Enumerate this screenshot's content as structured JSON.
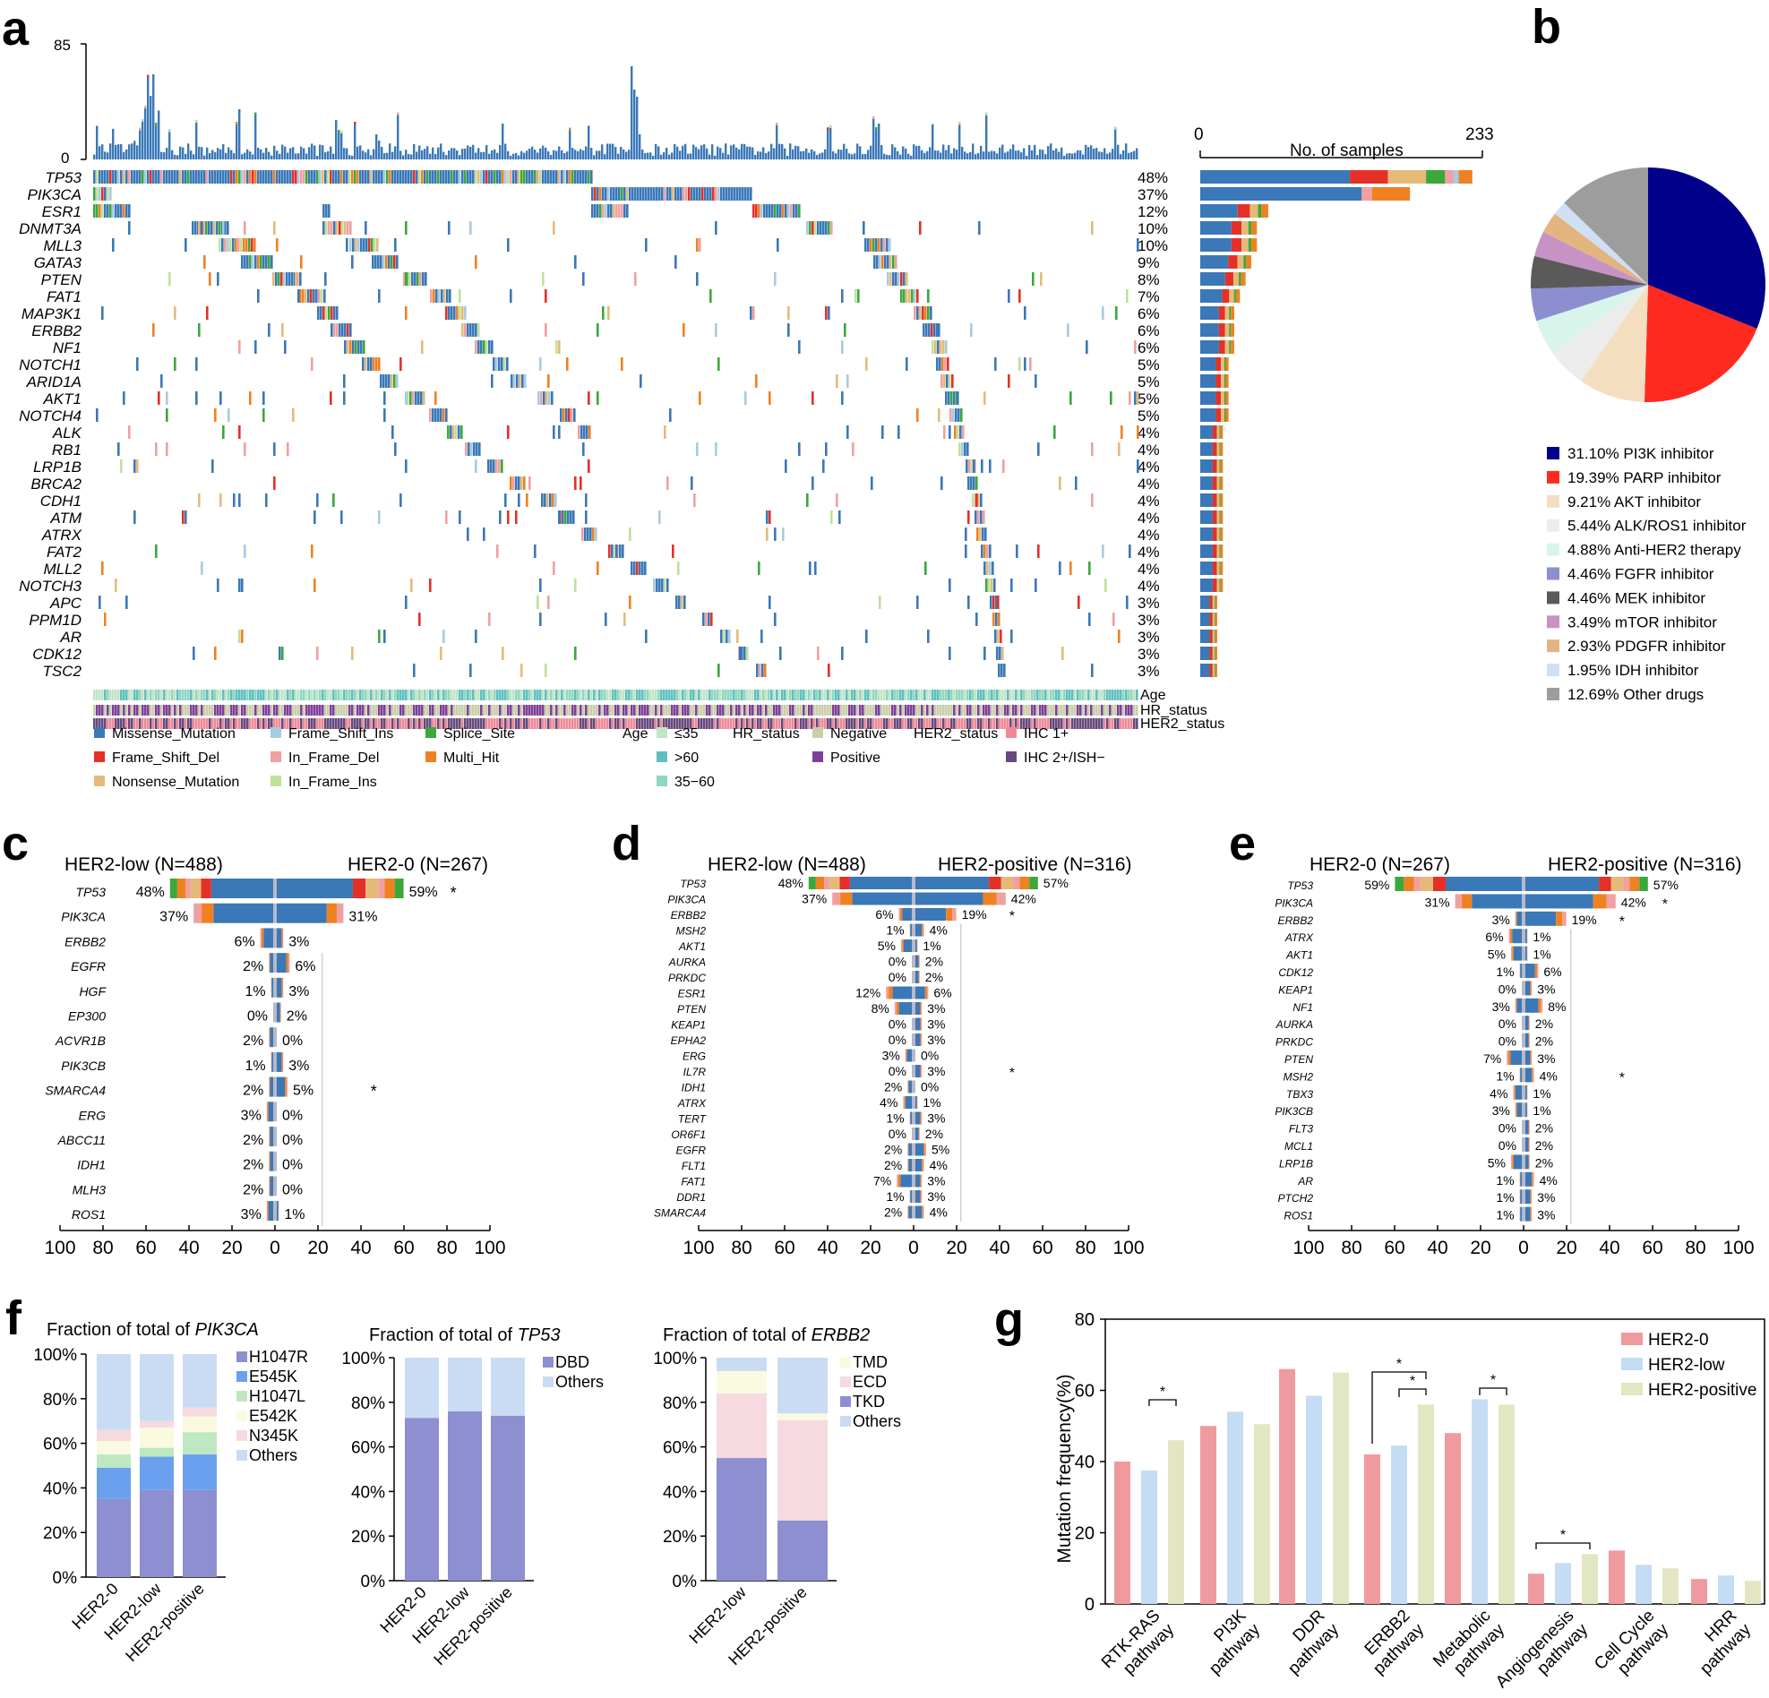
{
  "colors": {
    "missense": "#3a78b8",
    "frameshift_del": "#e53028",
    "nonsense": "#e5ba78",
    "frameshift_ins": "#a7cbe2",
    "inframe_del": "#f0a0a0",
    "inframe_ins": "#bde29a",
    "splice": "#3ba83a",
    "multi_hit": "#ef8121",
    "age_le35": "#c2e4c7",
    "age_gt60": "#5fbfbf",
    "age_35_60": "#8fd7be",
    "hr_negative": "#c9cea8",
    "hr_positive": "#7e3f98",
    "her2_ihc1": "#ee8a96",
    "her2_ihc2": "#66497d",
    "her2_0": "#ef9a9e",
    "her2_low": "#c4dcf4",
    "her2_positive": "#e3e6c2",
    "bar_blue": "#8d8fd0",
    "bar_lightblue": "#c9dcf4"
  },
  "panel_labels": {
    "a": "a",
    "b": "b",
    "c": "c",
    "d": "d",
    "e": "e",
    "f": "f",
    "g": "g"
  },
  "oncoplot": {
    "top_axis": {
      "max": "85",
      "min": "0"
    },
    "genes": [
      "TP53",
      "PIK3CA",
      "ESR1",
      "DNMT3A",
      "MLL3",
      "GATA3",
      "PTEN",
      "FAT1",
      "MAP3K1",
      "ERBB2",
      "NF1",
      "NOTCH1",
      "ARID1A",
      "AKT1",
      "NOTCH4",
      "ALK",
      "RB1",
      "LRP1B",
      "BRCA2",
      "CDH1",
      "ATM",
      "ATRX",
      "FAT2",
      "MLL2",
      "NOTCH3",
      "APC",
      "PPM1D",
      "AR",
      "CDK12",
      "TSC2"
    ],
    "percent_labels": [
      "48%",
      "37%",
      "12%",
      "10%",
      "10%",
      "9%",
      "8%",
      "7%",
      "6%",
      "6%",
      "6%",
      "5%",
      "5%",
      "5%",
      "5%",
      "4%",
      "4%",
      "4%",
      "4%",
      "4%",
      "4%",
      "4%",
      "4%",
      "4%",
      "4%",
      "3%",
      "3%",
      "3%",
      "3%",
      "3%"
    ],
    "percents": [
      48,
      37,
      12,
      10,
      10,
      9,
      8,
      7,
      6,
      6,
      6,
      5,
      5,
      5,
      5,
      4,
      4,
      4,
      4,
      4,
      4,
      4,
      4,
      4,
      4,
      3,
      3,
      3,
      3,
      3
    ],
    "samples_axis": {
      "title": "No. of samples",
      "min": "0",
      "max": "233"
    },
    "track_labels": [
      "Age",
      "HR_status",
      "HER2_status"
    ],
    "legend": {
      "mutation": [
        "Missense_Mutation",
        "Frame_Shift_Del",
        "Nonsense_Mutation",
        "Frame_Shift_Ins",
        "In_Frame_Del",
        "In_Frame_Ins",
        "Splice_Site",
        "Multi_Hit"
      ],
      "age_title": "Age",
      "age": [
        "≤35",
        ">60",
        "35−60"
      ],
      "hr_title": "HR_status",
      "hr": [
        "Negative",
        "Positive"
      ],
      "her2_title": "HER2_status",
      "her2": [
        "IHC 1+",
        "IHC 2+/ISH−"
      ]
    }
  },
  "pie": {
    "slices": [
      {
        "label": "31.10% PI3K inhibitor",
        "value": 31.1,
        "color": "#00008b"
      },
      {
        "label": "19.39% PARP inhibitor",
        "value": 19.39,
        "color": "#ff2a1f"
      },
      {
        "label": "9.21% AKT  inhibitor",
        "value": 9.21,
        "color": "#f3dfc0"
      },
      {
        "label": "5.44% ALK/ROS1 inhibitor",
        "value": 5.44,
        "color": "#ececec"
      },
      {
        "label": "4.88% Anti-HER2 therapy",
        "value": 4.88,
        "color": "#d8f5ec"
      },
      {
        "label": "4.46% FGFR inhibitor",
        "value": 4.46,
        "color": "#8c8ed0"
      },
      {
        "label": "4.46% MEK inhibitor",
        "value": 4.46,
        "color": "#5a5a5a"
      },
      {
        "label": "3.49% mTOR inhibitor",
        "value": 3.49,
        "color": "#c793c4"
      },
      {
        "label": "2.93% PDGFR inhibitor",
        "value": 2.93,
        "color": "#e3b47f"
      },
      {
        "label": "1.95% IDH inhibitor",
        "value": 1.95,
        "color": "#cfe0f5"
      },
      {
        "label": "12.69% Other drugs",
        "value": 12.69,
        "color": "#9d9d9d"
      }
    ]
  },
  "comparisons": {
    "c": {
      "left_title": "HER2-low (N=488)",
      "right_title": "HER2-0 (N=267)",
      "rows": [
        {
          "gene": "TP53",
          "l": 48,
          "r": 59,
          "ll": "48%",
          "rl": "59%",
          "sig": "*"
        },
        {
          "gene": "PIK3CA",
          "l": 37,
          "r": 31,
          "ll": "37%",
          "rl": "31%",
          "sig": ""
        },
        {
          "gene": "ERBB2",
          "l": 6,
          "r": 3,
          "ll": "6%",
          "rl": "3%",
          "sig": ""
        },
        {
          "gene": "EGFR",
          "l": 2,
          "r": 6,
          "ll": "2%",
          "rl": "6%",
          "sig": ""
        },
        {
          "gene": "HGF",
          "l": 1,
          "r": 3,
          "ll": "1%",
          "rl": "3%",
          "sig": ""
        },
        {
          "gene": "EP300",
          "l": 0,
          "r": 2,
          "ll": "0%",
          "rl": "2%",
          "sig": ""
        },
        {
          "gene": "ACVR1B",
          "l": 2,
          "r": 0,
          "ll": "2%",
          "rl": "0%",
          "sig": ""
        },
        {
          "gene": "PIK3CB",
          "l": 1,
          "r": 3,
          "ll": "1%",
          "rl": "3%",
          "sig": ""
        },
        {
          "gene": "SMARCA4",
          "l": 2,
          "r": 5,
          "ll": "2%",
          "rl": "5%",
          "sig": "*"
        },
        {
          "gene": "ERG",
          "l": 3,
          "r": 0,
          "ll": "3%",
          "rl": "0%",
          "sig": ""
        },
        {
          "gene": "ABCC11",
          "l": 2,
          "r": 0,
          "ll": "2%",
          "rl": "0%",
          "sig": ""
        },
        {
          "gene": "IDH1",
          "l": 2,
          "r": 0,
          "ll": "2%",
          "rl": "0%",
          "sig": ""
        },
        {
          "gene": "MLH3",
          "l": 2,
          "r": 0,
          "ll": "2%",
          "rl": "0%",
          "sig": ""
        },
        {
          "gene": "ROS1",
          "l": 3,
          "r": 1,
          "ll": "3%",
          "rl": "1%",
          "sig": ""
        }
      ],
      "axis_ticks": [
        "100",
        "80",
        "60",
        "40",
        "20",
        "0",
        "20",
        "40",
        "60",
        "80",
        "100"
      ]
    },
    "d": {
      "left_title": "HER2-low (N=488)",
      "right_title": "HER2-positive (N=316)",
      "rows": [
        {
          "gene": "TP53",
          "l": 48,
          "r": 57,
          "ll": "48%",
          "rl": "57%",
          "sig": ""
        },
        {
          "gene": "PIK3CA",
          "l": 37,
          "r": 42,
          "ll": "37%",
          "rl": "42%",
          "sig": ""
        },
        {
          "gene": "ERBB2",
          "l": 6,
          "r": 19,
          "ll": "6%",
          "rl": "19%",
          "sig": "*"
        },
        {
          "gene": "MSH2",
          "l": 1,
          "r": 4,
          "ll": "1%",
          "rl": "4%",
          "sig": ""
        },
        {
          "gene": "AKT1",
          "l": 5,
          "r": 1,
          "ll": "5%",
          "rl": "1%",
          "sig": ""
        },
        {
          "gene": "AURKA",
          "l": 0,
          "r": 2,
          "ll": "0%",
          "rl": "2%",
          "sig": ""
        },
        {
          "gene": "PRKDC",
          "l": 0,
          "r": 2,
          "ll": "0%",
          "rl": "2%",
          "sig": ""
        },
        {
          "gene": "ESR1",
          "l": 12,
          "r": 6,
          "ll": "12%",
          "rl": "6%",
          "sig": ""
        },
        {
          "gene": "PTEN",
          "l": 8,
          "r": 3,
          "ll": "8%",
          "rl": "3%",
          "sig": ""
        },
        {
          "gene": "KEAP1",
          "l": 0,
          "r": 3,
          "ll": "0%",
          "rl": "3%",
          "sig": ""
        },
        {
          "gene": "EPHA2",
          "l": 0,
          "r": 3,
          "ll": "0%",
          "rl": "3%",
          "sig": ""
        },
        {
          "gene": "ERG",
          "l": 3,
          "r": 0,
          "ll": "3%",
          "rl": "0%",
          "sig": ""
        },
        {
          "gene": "IL7R",
          "l": 0,
          "r": 3,
          "ll": "0%",
          "rl": "3%",
          "sig": "*"
        },
        {
          "gene": "IDH1",
          "l": 2,
          "r": 0,
          "ll": "2%",
          "rl": "0%",
          "sig": ""
        },
        {
          "gene": "ATRX",
          "l": 4,
          "r": 1,
          "ll": "4%",
          "rl": "1%",
          "sig": ""
        },
        {
          "gene": "TERT",
          "l": 1,
          "r": 3,
          "ll": "1%",
          "rl": "3%",
          "sig": ""
        },
        {
          "gene": "OR6F1",
          "l": 0,
          "r": 2,
          "ll": "0%",
          "rl": "2%",
          "sig": ""
        },
        {
          "gene": "EGFR",
          "l": 2,
          "r": 5,
          "ll": "2%",
          "rl": "5%",
          "sig": ""
        },
        {
          "gene": "FLT1",
          "l": 2,
          "r": 4,
          "ll": "2%",
          "rl": "4%",
          "sig": ""
        },
        {
          "gene": "FAT1",
          "l": 7,
          "r": 3,
          "ll": "7%",
          "rl": "3%",
          "sig": ""
        },
        {
          "gene": "DDR1",
          "l": 1,
          "r": 3,
          "ll": "1%",
          "rl": "3%",
          "sig": ""
        },
        {
          "gene": "SMARCA4",
          "l": 2,
          "r": 4,
          "ll": "2%",
          "rl": "4%",
          "sig": ""
        }
      ],
      "axis_ticks": [
        "100",
        "80",
        "60",
        "40",
        "20",
        "0",
        "20",
        "40",
        "60",
        "80",
        "100"
      ]
    },
    "e": {
      "left_title": "HER2-0 (N=267)",
      "right_title": "HER2-positive (N=316)",
      "rows": [
        {
          "gene": "TP53",
          "l": 59,
          "r": 57,
          "ll": "59%",
          "rl": "57%",
          "sig": ""
        },
        {
          "gene": "PIK3CA",
          "l": 31,
          "r": 42,
          "ll": "31%",
          "rl": "42%",
          "sig": "*"
        },
        {
          "gene": "ERBB2",
          "l": 3,
          "r": 19,
          "ll": "3%",
          "rl": "19%",
          "sig": "*"
        },
        {
          "gene": "ATRX",
          "l": 6,
          "r": 1,
          "ll": "6%",
          "rl": "1%",
          "sig": ""
        },
        {
          "gene": "AKT1",
          "l": 5,
          "r": 1,
          "ll": "5%",
          "rl": "1%",
          "sig": ""
        },
        {
          "gene": "CDK12",
          "l": 1,
          "r": 6,
          "ll": "1%",
          "rl": "6%",
          "sig": ""
        },
        {
          "gene": "KEAP1",
          "l": 0,
          "r": 3,
          "ll": "0%",
          "rl": "3%",
          "sig": ""
        },
        {
          "gene": "NF1",
          "l": 3,
          "r": 8,
          "ll": "3%",
          "rl": "8%",
          "sig": ""
        },
        {
          "gene": "AURKA",
          "l": 0,
          "r": 2,
          "ll": "0%",
          "rl": "2%",
          "sig": ""
        },
        {
          "gene": "PRKDC",
          "l": 0,
          "r": 2,
          "ll": "0%",
          "rl": "2%",
          "sig": ""
        },
        {
          "gene": "PTEN",
          "l": 7,
          "r": 3,
          "ll": "7%",
          "rl": "3%",
          "sig": ""
        },
        {
          "gene": "MSH2",
          "l": 1,
          "r": 4,
          "ll": "1%",
          "rl": "4%",
          "sig": "*"
        },
        {
          "gene": "TBX3",
          "l": 4,
          "r": 1,
          "ll": "4%",
          "rl": "1%",
          "sig": ""
        },
        {
          "gene": "PIK3CB",
          "l": 3,
          "r": 1,
          "ll": "3%",
          "rl": "1%",
          "sig": ""
        },
        {
          "gene": "FLT3",
          "l": 0,
          "r": 2,
          "ll": "0%",
          "rl": "2%",
          "sig": ""
        },
        {
          "gene": "MCL1",
          "l": 0,
          "r": 2,
          "ll": "0%",
          "rl": "2%",
          "sig": ""
        },
        {
          "gene": "LRP1B",
          "l": 5,
          "r": 2,
          "ll": "5%",
          "rl": "2%",
          "sig": ""
        },
        {
          "gene": "AR",
          "l": 1,
          "r": 4,
          "ll": "1%",
          "rl": "4%",
          "sig": ""
        },
        {
          "gene": "PTCH2",
          "l": 1,
          "r": 3,
          "ll": "1%",
          "rl": "3%",
          "sig": ""
        },
        {
          "gene": "ROS1",
          "l": 1,
          "r": 3,
          "ll": "1%",
          "rl": "3%",
          "sig": ""
        }
      ],
      "axis_ticks": [
        "100",
        "80",
        "60",
        "40",
        "20",
        "0",
        "20",
        "40",
        "60",
        "80",
        "100"
      ]
    }
  },
  "chart_data": [
    {
      "type": "bar",
      "panel": "f1",
      "title_prefix": "Fraction of total of ",
      "title_gene": "PIK3CA",
      "categories": [
        "HER2-0",
        "HER2-low",
        "HER2-positive"
      ],
      "yticks": [
        "0%",
        "20%",
        "40%",
        "60%",
        "80%",
        "100%"
      ],
      "series": [
        {
          "name": "H1047R",
          "color": "#8d8fd0",
          "values": [
            35,
            39,
            39
          ]
        },
        {
          "name": "E545K",
          "color": "#6aa0ee",
          "values": [
            14,
            15,
            16
          ]
        },
        {
          "name": "H1047L",
          "color": "#bfe8c2",
          "values": [
            6,
            4,
            10
          ]
        },
        {
          "name": "E542K",
          "color": "#fafae0",
          "values": [
            6,
            9,
            7
          ]
        },
        {
          "name": "N345K",
          "color": "#f6dadf",
          "values": [
            5,
            3,
            4
          ]
        },
        {
          "name": "Others",
          "color": "#c9dcf4",
          "values": [
            34,
            30,
            24
          ]
        }
      ]
    },
    {
      "type": "bar",
      "panel": "f2",
      "title_prefix": "Fraction of total of ",
      "title_gene": "TP53",
      "categories": [
        "HER2-0",
        "HER2-low",
        "HER2-positive"
      ],
      "yticks": [
        "0%",
        "20%",
        "40%",
        "60%",
        "80%",
        "100%"
      ],
      "series": [
        {
          "name": "DBD",
          "color": "#8d8fd0",
          "values": [
            73,
            76,
            74
          ]
        },
        {
          "name": "Others",
          "color": "#c9dcf4",
          "values": [
            27,
            24,
            26
          ]
        }
      ]
    },
    {
      "type": "bar",
      "panel": "f3",
      "title_prefix": "Fraction of total of ",
      "title_gene": "ERBB2",
      "categories": [
        "HER2-low",
        "HER2-positive"
      ],
      "yticks": [
        "0%",
        "20%",
        "40%",
        "60%",
        "80%",
        "100%"
      ],
      "series": [
        {
          "name": "TKD",
          "color": "#8d8fd0",
          "values": [
            55,
            27
          ]
        },
        {
          "name": "ECD",
          "color": "#f6dadf",
          "values": [
            29,
            45
          ]
        },
        {
          "name": "TMD",
          "color": "#fafae0",
          "values": [
            10,
            3
          ]
        },
        {
          "name": "Others",
          "color": "#c9dcf4",
          "values": [
            6,
            25
          ]
        }
      ],
      "legend_order": [
        "TMD",
        "ECD",
        "TKD",
        "Others"
      ]
    },
    {
      "type": "bar",
      "panel": "g",
      "ylabel": "Mutation frequency(%)",
      "ylim": [
        0,
        80
      ],
      "yticks": [
        "0",
        "20",
        "40",
        "60",
        "80"
      ],
      "categories": [
        "RTK-RAS pathway",
        "PI3K pathway",
        "DDR pathway",
        "ERBB2 pathway",
        "Metabolic pathway",
        "Angiogenesis pathway",
        "Cell Cycle pathway",
        "HRR pathway"
      ],
      "category_lines": [
        [
          "RTK-RAS",
          "pathway"
        ],
        [
          "PI3K",
          "pathway"
        ],
        [
          "DDR",
          "pathway"
        ],
        [
          "ERBB2",
          "pathway"
        ],
        [
          "Metabolic",
          "pathway"
        ],
        [
          "Angiogenesis",
          "pathway"
        ],
        [
          "Cell Cycle",
          "pathway"
        ],
        [
          "HRR",
          "pathway"
        ]
      ],
      "series": [
        {
          "name": "HER2-0",
          "color": "#ef9a9e",
          "values": [
            40,
            50,
            66,
            42,
            48,
            8.5,
            15,
            7
          ]
        },
        {
          "name": "HER2-low",
          "color": "#c4dcf4",
          "values": [
            37.5,
            54,
            58.5,
            44.5,
            57.5,
            11.5,
            11,
            8
          ]
        },
        {
          "name": "HER2-positive",
          "color": "#e3e6c2",
          "values": [
            46,
            50.5,
            65,
            56,
            56,
            14,
            10,
            6.5
          ]
        }
      ],
      "sig": "*"
    }
  ]
}
